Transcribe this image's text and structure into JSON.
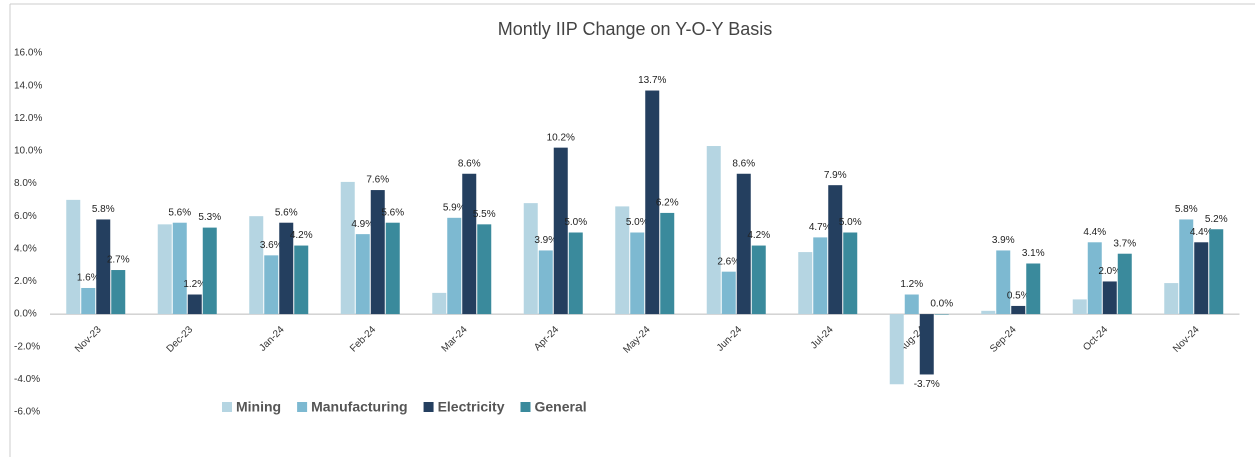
{
  "chart_data": {
    "type": "bar",
    "title": "Montly IIP Change on Y-O-Y Basis",
    "categories": [
      "Nov-23",
      "Dec-23",
      "Jan-24",
      "Feb-24",
      "Mar-24",
      "Apr-24",
      "May-24",
      "Jun-24",
      "Jul-24",
      "Aug-24",
      "Sep-24",
      "Oct-24",
      "Nov-24"
    ],
    "series": [
      {
        "name": "Mining",
        "color": "#b5d5e2",
        "values": [
          7.0,
          5.5,
          6.0,
          8.1,
          1.3,
          6.8,
          6.6,
          10.3,
          3.8,
          -4.3,
          0.2,
          0.9,
          1.9
        ]
      },
      {
        "name": "Manufacturing",
        "color": "#7db9d1",
        "values": [
          1.6,
          5.6,
          3.6,
          4.9,
          5.9,
          3.9,
          5.0,
          2.6,
          4.7,
          1.2,
          3.9,
          4.4,
          5.8
        ],
        "value_labels": [
          "1.6%",
          "5.6%",
          "3.6%",
          "4.9%",
          "5.9%",
          "3.9%",
          "5.0%",
          "2.6%",
          "4.7%",
          "1.2%",
          "3.9%",
          "4.4%",
          "5.8%"
        ]
      },
      {
        "name": "Electricity",
        "color": "#243f5f",
        "values": [
          5.8,
          1.2,
          5.6,
          7.6,
          8.6,
          10.2,
          13.7,
          8.6,
          7.9,
          -3.7,
          0.5,
          2.0,
          4.4
        ],
        "value_labels": [
          "5.8%",
          "1.2%",
          "5.6%",
          "7.6%",
          "8.6%",
          "10.2%",
          "13.7%",
          "8.6%",
          "7.9%",
          "-3.7%",
          "0.5%",
          "2.0%",
          "4.4%"
        ]
      },
      {
        "name": "General",
        "color": "#3a8a9c",
        "values": [
          2.7,
          5.3,
          4.2,
          5.6,
          5.5,
          5.0,
          6.2,
          4.2,
          5.0,
          0.0,
          3.1,
          3.7,
          5.2
        ],
        "value_labels": [
          "2.7%",
          "5.3%",
          "4.2%",
          "5.6%",
          "5.5%",
          "5.0%",
          "6.2%",
          "4.2%",
          "5.0%",
          "0.0%",
          "3.1%",
          "3.7%",
          "5.2%"
        ]
      }
    ],
    "ylim": [
      -6,
      16
    ],
    "yticks": [
      {
        "value": 16,
        "label": "16.0%"
      },
      {
        "value": 14,
        "label": "14.0%"
      },
      {
        "value": 12,
        "label": "12.0%"
      },
      {
        "value": 10,
        "label": "10.0%"
      },
      {
        "value": 8,
        "label": "8.0%"
      },
      {
        "value": 6,
        "label": "6.0%"
      },
      {
        "value": 4,
        "label": "4.0%"
      },
      {
        "value": 2,
        "label": "2.0%"
      },
      {
        "value": 0,
        "label": "0.0%"
      },
      {
        "value": -2,
        "label": "-2.0%"
      },
      {
        "value": -4,
        "label": "-4.0%"
      },
      {
        "value": -6,
        "label": "-6.0%"
      }
    ],
    "grid": false
  }
}
